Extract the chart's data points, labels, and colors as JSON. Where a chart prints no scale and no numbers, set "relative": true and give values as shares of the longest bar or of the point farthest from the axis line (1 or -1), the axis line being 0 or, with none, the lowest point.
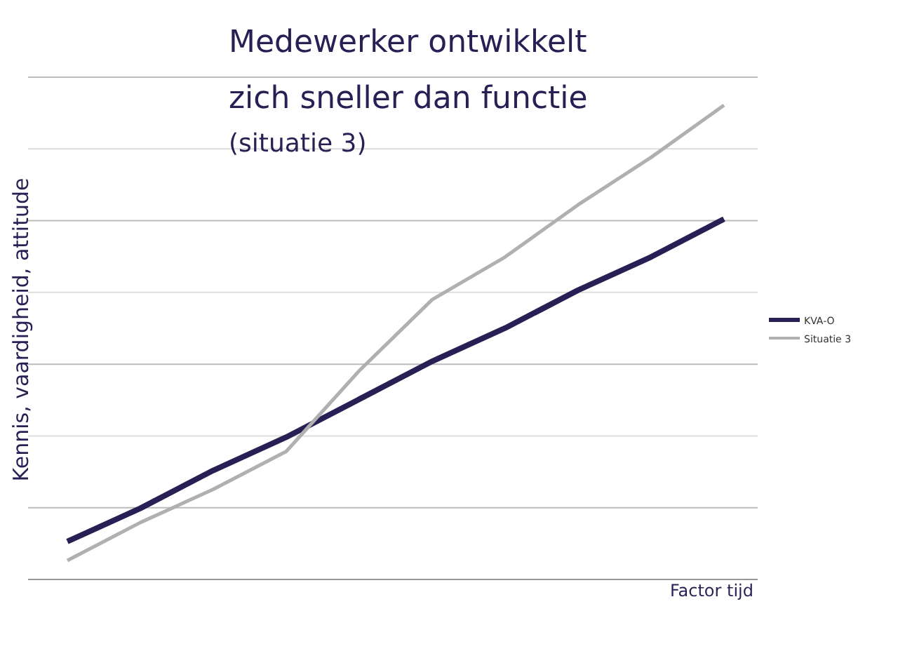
{
  "chart_data": {
    "type": "line",
    "title": "Medewerker ontwikkelt zich sneller dan functie",
    "subtitle": "(situatie 3)",
    "xlabel": "Factor tijd",
    "ylabel": "Kennis, vaardigheid, attitude",
    "relative": true,
    "grid": "y",
    "legend": "right",
    "line_style": "solid",
    "marker": "none",
    "categories": [
      null,
      null,
      null,
      null,
      null,
      null,
      null,
      null,
      null,
      null
    ],
    "series": [
      {
        "name": "KVA-O",
        "color": "#2a1f55",
        "values": [
          0.08,
          0.15,
          0.23,
          0.3,
          0.38,
          0.46,
          0.53,
          0.61,
          0.68,
          0.76
        ]
      },
      {
        "name": "Situatie 3",
        "color": "#b0b0b0",
        "values": [
          0.04,
          0.12,
          0.19,
          0.27,
          0.44,
          0.59,
          0.68,
          0.79,
          0.89,
          1
        ]
      }
    ]
  }
}
